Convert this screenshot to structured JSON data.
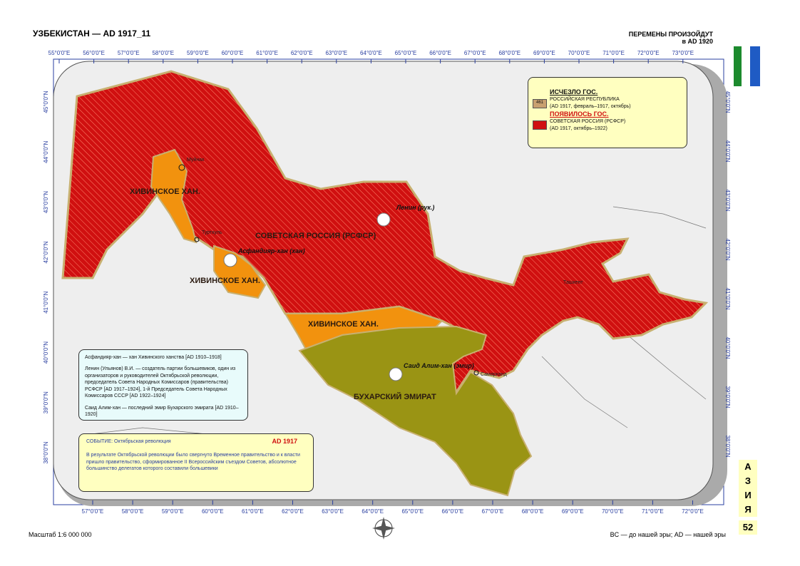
{
  "header": {
    "title": "УЗБЕКИСТАН — AD 1917_11",
    "note": "ПЕРЕМЕНЫ ПРОИЗОЙДУТ",
    "note_date": "в AD 1920"
  },
  "grid": {
    "top": [
      "55°0'0\"E",
      "56°0'0\"E",
      "57°0'0\"E",
      "58°0'0\"E",
      "59°0'0\"E",
      "60°0'0\"E",
      "61°0'0\"E",
      "62°0'0\"E",
      "63°0'0\"E",
      "64°0'0\"E",
      "65°0'0\"E",
      "66°0'0\"E",
      "67°0'0\"E",
      "68°0'0\"E",
      "69°0'0\"E",
      "70°0'0\"E",
      "71°0'0\"E",
      "72°0'0\"E",
      "73°0'0\"E"
    ],
    "bottom": [
      "57°0'0\"E",
      "58°0'0\"E",
      "59°0'0\"E",
      "60°0'0\"E",
      "61°0'0\"E",
      "62°0'0\"E",
      "63°0'0\"E",
      "64°0'0\"E",
      "65°0'0\"E",
      "66°0'0\"E",
      "67°0'0\"E",
      "68°0'0\"E",
      "69°0'0\"E",
      "70°0'0\"E",
      "71°0'0\"E",
      "72°0'0\"E"
    ],
    "left": [
      "45°0'0\"N",
      "44°0'0\"N",
      "43°0'0\"N",
      "42°0'0\"N",
      "41°0'0\"N",
      "40°0'0\"N",
      "39°0'0\"N",
      "38°0'0\"N"
    ],
    "right": [
      "45°0'0\"N",
      "44°0'0\"N",
      "43°0'0\"N",
      "42°0'0\"N",
      "41°0'0\"N",
      "40°0'0\"N",
      "39°0'0\"N",
      "38°0'0\"N"
    ]
  },
  "legend": {
    "disappeared": {
      "heading": "ИСЧЕЗЛО ГОС.",
      "badge": "461",
      "name": "РОССИЙСКАЯ РЕСПУБЛИКА",
      "dates": "(AD 1917, февраль–1917, октябрь)"
    },
    "appeared": {
      "heading": "ПОЯВИЛОСЬ ГОС.",
      "name": "СОВЕТСКАЯ РОССИЯ (РСФСР)",
      "dates": "(AD 1917, октябрь–1922)"
    }
  },
  "regions": [
    "ХИВИНСКОЕ ХАН.",
    "СОВЕТСКАЯ РОССИЯ (РСФСР)",
    "ХИВИНСКОЕ ХАН.",
    "ХИВИНСКОЕ ХАН.",
    "БУХАРСКИЙ ЭМИРАТ"
  ],
  "cities": [
    "Муйнак",
    "Турткуль",
    "Ташкент",
    "Самарканд"
  ],
  "persons": [
    "Ленин (рук.)",
    "Асфандияр-хан (хан)",
    "Саид Алим-хан (эмир)"
  ],
  "notes": [
    "Асфандияр-хан — хан Хивинского ханства [AD 1910–1918]",
    "Ленин (Ульянов) В.И. — создатель партии большевиков, один из организаторов и руководителей Октябрьской революции, председатель Совета Народных Комиссаров (правительства) РСФСР [AD 1917–1924], 1-й Председатель Совета Народных Комиссаров СССР [AD 1922–1924]",
    "Саид Алим-хан — последний эмир Бухарского эмирата [AD 1910–1920]"
  ],
  "event": {
    "label": "СОБЫТИЕ: Октябрьская революция",
    "date": "AD 1917",
    "text": "В результате Октябрьской революции было свергнуто Временное правительство и к власти пришло правительство, сформированное II Всероссийским съездом Советов, абсолютное большинство делегатов которого составили большевики"
  },
  "footer": {
    "scale": "Масштаб 1:6 000 000",
    "era": "BC — до нашей эры; AD — нашей эры",
    "continent": [
      "А",
      "З",
      "И",
      "Я"
    ],
    "page": "52"
  }
}
